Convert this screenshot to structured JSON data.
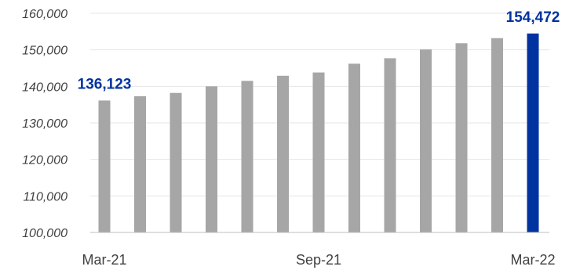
{
  "chart_data": {
    "type": "bar",
    "categories": [
      "Mar-21",
      "Apr-21",
      "May-21",
      "Jun-21",
      "Jul-21",
      "Aug-21",
      "Sep-21",
      "Oct-21",
      "Nov-21",
      "Dec-21",
      "Jan-22",
      "Feb-22",
      "Mar-22"
    ],
    "x_tick_labels_shown": [
      "Mar-21",
      "Sep-21",
      "Mar-22"
    ],
    "values": [
      136123,
      137300,
      138200,
      140000,
      141500,
      142900,
      143800,
      146200,
      147700,
      150100,
      151800,
      153200,
      154472
    ],
    "data_labels": [
      {
        "category": "Mar-21",
        "text": "136,123"
      },
      {
        "category": "Mar-22",
        "text": "154,472"
      }
    ],
    "highlight_category": "Mar-22",
    "colors": {
      "bar": "#A6A6A6",
      "highlight_bar": "#0033A0",
      "label": "#0033A0",
      "grid": "#E6E6E6",
      "axis": "#BFBFBF"
    },
    "ylim": [
      100000,
      160000
    ],
    "yticks": [
      100000,
      110000,
      120000,
      130000,
      140000,
      150000,
      160000
    ],
    "ytick_labels": [
      "100,000",
      "110,000",
      "120,000",
      "130,000",
      "140,000",
      "150,000",
      "160,000"
    ],
    "title": "",
    "xlabel": "",
    "ylabel": "",
    "grid": true,
    "legend": "none"
  }
}
